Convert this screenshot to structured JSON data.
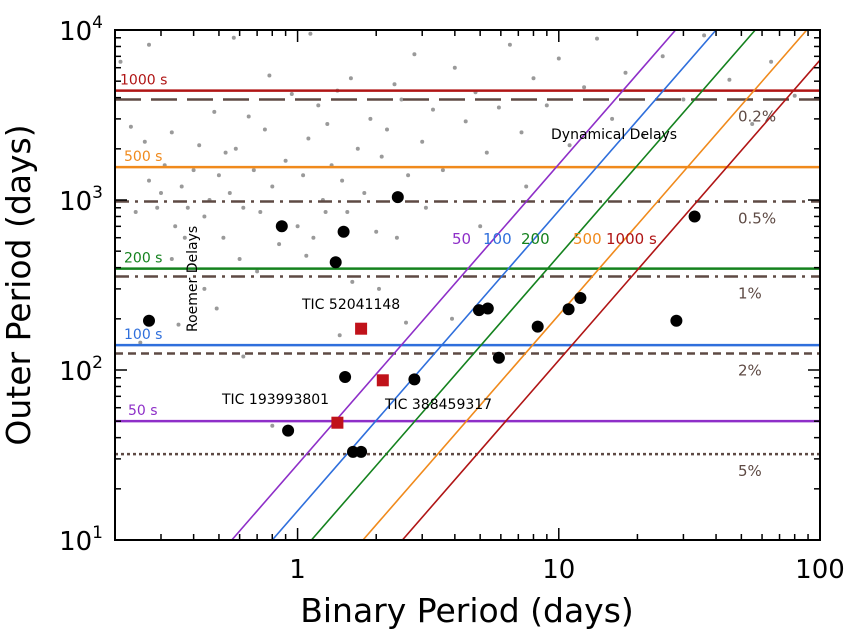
{
  "chart_data": {
    "type": "scatter",
    "xlabel": "Binary Period (days)",
    "ylabel": "Outer Period (days)",
    "xscale": "log",
    "yscale": "log",
    "xlim": [
      0.2,
      100
    ],
    "ylim": [
      10,
      10000
    ],
    "x_ticks": [
      {
        "value": 1,
        "label": "1"
      },
      {
        "value": 10,
        "label": "10"
      },
      {
        "value": 100,
        "label": "100"
      }
    ],
    "y_ticks": [
      {
        "value": 10,
        "base": "10",
        "exp": "1"
      },
      {
        "value": 100,
        "base": "10",
        "exp": "2"
      },
      {
        "value": 1000,
        "base": "10",
        "exp": "3"
      },
      {
        "value": 10000,
        "base": "10",
        "exp": "4"
      }
    ],
    "roemer_delay_lines": [
      {
        "label": "1000 s",
        "outer_period": 4400,
        "color": "#b01515"
      },
      {
        "label": "500 s",
        "outer_period": 1560,
        "color": "#f08a1c"
      },
      {
        "label": "200 s",
        "outer_period": 395,
        "color": "#14821e"
      },
      {
        "label": "100 s",
        "outer_period": 140,
        "color": "#2f6fdc"
      },
      {
        "label": "50 s",
        "outer_period": 50,
        "color": "#8e2fc8"
      }
    ],
    "dynamical_delay_lines": [
      {
        "label": "50",
        "color": "#8e2fc8",
        "x_at_ymin": 0.56,
        "x_at_ymax": 28
      },
      {
        "label": "100",
        "color": "#2f6fdc",
        "x_at_ymin": 0.8,
        "x_at_ymax": 40
      },
      {
        "label": "200",
        "color": "#14821e",
        "x_at_ymin": 1.13,
        "x_at_ymax": 56.5
      },
      {
        "label": "500",
        "color": "#f08a1c",
        "x_at_ymin": 1.78,
        "x_at_ymax": 89
      },
      {
        "label": "1000 s",
        "color": "#b01515",
        "x_at_ymin": 2.52,
        "x_at_ymax": 126
      }
    ],
    "tertiary_mass_fraction_lines": [
      {
        "label": "0.2%",
        "outer_period": 3900,
        "dash": "long"
      },
      {
        "label": "0.5%",
        "outer_period": 980,
        "dash": "dashdot"
      },
      {
        "label": "1%",
        "outer_period": 355,
        "dash": "dashdot"
      },
      {
        "label": "2%",
        "outer_period": 125,
        "dash": "dash"
      },
      {
        "label": "5%",
        "outer_period": 32,
        "dash": "dot"
      }
    ],
    "region_labels": {
      "roemer": "Roemer Delays",
      "dynamical": "Dynamical Delays"
    },
    "highlighted_systems": [
      {
        "name": "TIC 52041148",
        "x": 1.75,
        "y": 175
      },
      {
        "name": "TIC 193993801",
        "x": 1.42,
        "y": 49
      },
      {
        "name": "TIC 388459317",
        "x": 2.12,
        "y": 87
      }
    ],
    "known_triples": [
      [
        0.27,
        195
      ],
      [
        0.92,
        44
      ],
      [
        0.87,
        700
      ],
      [
        1.4,
        430
      ],
      [
        1.5,
        650
      ],
      [
        2.42,
        1040
      ],
      [
        1.52,
        91
      ],
      [
        1.63,
        33
      ],
      [
        1.75,
        33
      ],
      [
        2.8,
        88
      ],
      [
        4.95,
        225
      ],
      [
        5.35,
        230
      ],
      [
        5.9,
        118
      ],
      [
        8.3,
        180
      ],
      [
        10.9,
        228
      ],
      [
        12.1,
        265
      ],
      [
        28.2,
        195
      ],
      [
        33.1,
        800
      ]
    ],
    "background_systems": [
      [
        0.21,
        6500
      ],
      [
        0.23,
        2700
      ],
      [
        0.26,
        2200
      ],
      [
        0.27,
        1300
      ],
      [
        0.29,
        900
      ],
      [
        0.3,
        1100
      ],
      [
        0.31,
        1600
      ],
      [
        0.33,
        2500
      ],
      [
        0.34,
        700
      ],
      [
        0.36,
        1200
      ],
      [
        0.38,
        900
      ],
      [
        0.4,
        1500
      ],
      [
        0.42,
        2100
      ],
      [
        0.44,
        800
      ],
      [
        0.46,
        1000
      ],
      [
        0.48,
        3300
      ],
      [
        0.5,
        1400
      ],
      [
        0.52,
        600
      ],
      [
        0.55,
        1100
      ],
      [
        0.58,
        2000
      ],
      [
        0.6,
        450
      ],
      [
        0.62,
        900
      ],
      [
        0.65,
        3100
      ],
      [
        0.68,
        1500
      ],
      [
        0.72,
        850
      ],
      [
        0.75,
        2600
      ],
      [
        0.8,
        1200
      ],
      [
        0.85,
        550
      ],
      [
        0.9,
        1700
      ],
      [
        0.95,
        4200
      ],
      [
        1.0,
        700
      ],
      [
        1.05,
        1400
      ],
      [
        1.1,
        2300
      ],
      [
        1.15,
        600
      ],
      [
        1.2,
        3600
      ],
      [
        1.25,
        1000
      ],
      [
        1.3,
        2800
      ],
      [
        1.35,
        1600
      ],
      [
        1.42,
        4400
      ],
      [
        1.48,
        1300
      ],
      [
        1.55,
        850
      ],
      [
        1.6,
        5200
      ],
      [
        1.7,
        2000
      ],
      [
        1.8,
        1100
      ],
      [
        1.9,
        3000
      ],
      [
        2.0,
        650
      ],
      [
        2.1,
        1800
      ],
      [
        2.2,
        2600
      ],
      [
        2.35,
        4800
      ],
      [
        2.5,
        3900
      ],
      [
        2.65,
        1400
      ],
      [
        2.8,
        7200
      ],
      [
        3.0,
        2200
      ],
      [
        3.3,
        3400
      ],
      [
        3.6,
        1500
      ],
      [
        4.0,
        6000
      ],
      [
        4.4,
        2900
      ],
      [
        4.8,
        4300
      ],
      [
        5.3,
        1900
      ],
      [
        5.9,
        3500
      ],
      [
        6.5,
        8200
      ],
      [
        7.2,
        2500
      ],
      [
        8.0,
        5200
      ],
      [
        9.0,
        3600
      ],
      [
        10.0,
        6800
      ],
      [
        11.0,
        2100
      ],
      [
        12.5,
        4600
      ],
      [
        14.0,
        8900
      ],
      [
        16.0,
        3000
      ],
      [
        18.0,
        5600
      ],
      [
        21.0,
        2400
      ],
      [
        25.0,
        7000
      ],
      [
        30.0,
        3900
      ],
      [
        36.0,
        9300
      ],
      [
        45.0,
        5100
      ],
      [
        55.0,
        2800
      ],
      [
        65.0,
        6500
      ],
      [
        80.0,
        4100
      ],
      [
        0.24,
        850
      ],
      [
        0.37,
        600
      ],
      [
        0.53,
        1900
      ],
      [
        0.7,
        380
      ],
      [
        0.78,
        5400
      ],
      [
        1.08,
        470
      ],
      [
        1.28,
        850
      ],
      [
        1.62,
        330
      ],
      [
        2.05,
        300
      ],
      [
        0.44,
        300
      ],
      [
        0.33,
        450
      ],
      [
        0.57,
        9000
      ],
      [
        1.12,
        9500
      ],
      [
        0.27,
        8200
      ],
      [
        3.1,
        900
      ],
      [
        2.4,
        600
      ],
      [
        0.49,
        230
      ],
      [
        0.62,
        120
      ],
      [
        0.8,
        47
      ],
      [
        1.45,
        160
      ],
      [
        2.6,
        190
      ],
      [
        0.35,
        185
      ],
      [
        0.25,
        145
      ],
      [
        3.9,
        200
      ],
      [
        5.0,
        700
      ],
      [
        7.5,
        1200
      ]
    ]
  }
}
